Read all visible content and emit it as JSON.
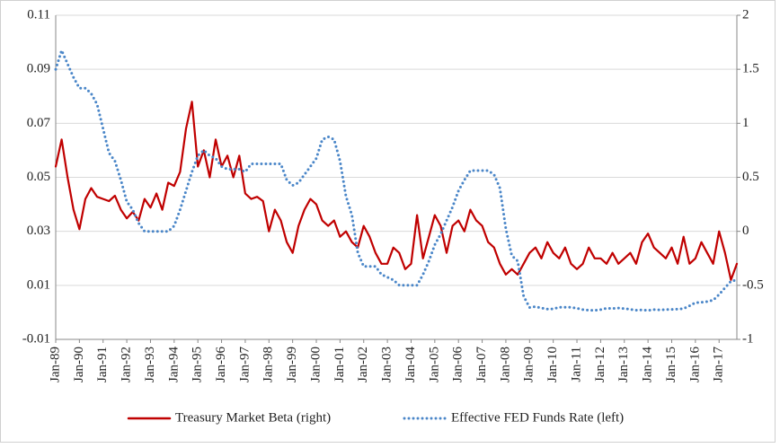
{
  "chart_data": {
    "type": "line",
    "categories": [
      "Jan-89",
      null,
      null,
      null,
      "Jan-90",
      null,
      null,
      null,
      "Jan-91",
      null,
      null,
      null,
      "Jan-92",
      null,
      null,
      null,
      "Jan-93",
      null,
      null,
      null,
      "Jan-94",
      null,
      null,
      null,
      "Jan-95",
      null,
      null,
      null,
      "Jan-96",
      null,
      null,
      null,
      "Jan-97",
      null,
      null,
      null,
      "Jan-98",
      null,
      null,
      null,
      "Jan-99",
      null,
      null,
      null,
      "Jan-00",
      null,
      null,
      null,
      "Jan-01",
      null,
      null,
      null,
      "Jan-02",
      null,
      null,
      null,
      "Jan-03",
      null,
      null,
      null,
      "Jan-04",
      null,
      null,
      null,
      "Jan-05",
      null,
      null,
      null,
      "Jan-06",
      null,
      null,
      null,
      "Jan-07",
      null,
      null,
      null,
      "Jan-08",
      null,
      null,
      null,
      "Jan-09",
      null,
      null,
      null,
      "Jan-10",
      null,
      null,
      null,
      "Jan-11",
      null,
      null,
      null,
      "Jan-12",
      null,
      null,
      null,
      "Jan-13",
      null,
      null,
      null,
      "Jan-14",
      null,
      null,
      null,
      "Jan-15",
      null,
      null,
      null,
      "Jan-16",
      null,
      null,
      null,
      "Jan-17",
      null,
      null,
      null
    ],
    "series": [
      {
        "name": "Treasury Market Beta (right)",
        "color": "#c00000",
        "dash": "solid",
        "axis": "y2",
        "values": [
          0.6,
          0.85,
          0.5,
          0.2,
          0.02,
          0.3,
          0.4,
          0.32,
          0.3,
          0.28,
          0.33,
          0.2,
          0.12,
          0.18,
          0.1,
          0.3,
          0.22,
          0.35,
          0.2,
          0.45,
          0.42,
          0.55,
          0.95,
          1.2,
          0.6,
          0.75,
          0.5,
          0.85,
          0.6,
          0.7,
          0.5,
          0.7,
          0.35,
          0.3,
          0.32,
          0.28,
          0.0,
          0.2,
          0.1,
          -0.1,
          -0.2,
          0.05,
          0.2,
          0.3,
          0.25,
          0.1,
          0.05,
          0.1,
          -0.05,
          0.0,
          -0.1,
          -0.15,
          0.05,
          -0.05,
          -0.2,
          -0.3,
          -0.3,
          -0.15,
          -0.2,
          -0.35,
          -0.3,
          0.15,
          -0.25,
          -0.05,
          0.15,
          0.05,
          -0.2,
          0.05,
          0.1,
          0.0,
          0.2,
          0.1,
          0.05,
          -0.1,
          -0.15,
          -0.3,
          -0.4,
          -0.35,
          -0.4,
          -0.3,
          -0.2,
          -0.15,
          -0.25,
          -0.1,
          -0.2,
          -0.25,
          -0.15,
          -0.3,
          -0.35,
          -0.3,
          -0.15,
          -0.25,
          -0.25,
          -0.3,
          -0.2,
          -0.3,
          -0.25,
          -0.2,
          -0.3,
          -0.1,
          -0.02,
          -0.15,
          -0.2,
          -0.25,
          -0.15,
          -0.3,
          -0.05,
          -0.3,
          -0.25,
          -0.1,
          -0.2,
          -0.3,
          0.0,
          -0.2,
          -0.45,
          -0.3
        ]
      },
      {
        "name": "Effective FED Funds Rate (left)",
        "color": "#4a86c8",
        "dash": "dotted",
        "axis": "y",
        "values": [
          0.09,
          0.097,
          0.092,
          0.087,
          0.083,
          0.083,
          0.081,
          0.077,
          0.068,
          0.059,
          0.056,
          0.049,
          0.041,
          0.038,
          0.033,
          0.03,
          0.03,
          0.03,
          0.03,
          0.03,
          0.032,
          0.038,
          0.045,
          0.052,
          0.058,
          0.06,
          0.058,
          0.057,
          0.054,
          0.053,
          0.053,
          0.053,
          0.052,
          0.055,
          0.055,
          0.055,
          0.055,
          0.055,
          0.055,
          0.049,
          0.047,
          0.048,
          0.051,
          0.054,
          0.057,
          0.064,
          0.065,
          0.064,
          0.056,
          0.043,
          0.036,
          0.022,
          0.017,
          0.017,
          0.017,
          0.014,
          0.013,
          0.012,
          0.01,
          0.01,
          0.01,
          0.01,
          0.014,
          0.019,
          0.025,
          0.029,
          0.034,
          0.039,
          0.045,
          0.049,
          0.0525,
          0.0525,
          0.0525,
          0.0525,
          0.051,
          0.046,
          0.031,
          0.021,
          0.019,
          0.006,
          0.0018,
          0.0021,
          0.0016,
          0.0012,
          0.0013,
          0.0019,
          0.0019,
          0.0019,
          0.0015,
          0.001,
          0.0008,
          0.0007,
          0.001,
          0.0015,
          0.0014,
          0.0016,
          0.0014,
          0.0011,
          0.0008,
          0.0009,
          0.0007,
          0.001,
          0.0009,
          0.001,
          0.0011,
          0.0012,
          0.0014,
          0.0024,
          0.0036,
          0.0037,
          0.004,
          0.0045,
          0.0066,
          0.0091,
          0.0115,
          0.012
        ]
      }
    ],
    "ylim": [
      -0.01,
      0.11
    ],
    "yticks": [
      -0.01,
      0.01,
      0.03,
      0.05,
      0.07,
      0.09,
      0.11
    ],
    "y2lim": [
      -1,
      2
    ],
    "y2ticks": [
      -1,
      -0.5,
      0,
      0.5,
      1,
      1.5,
      2
    ],
    "grid": true,
    "legend": "bottom"
  }
}
